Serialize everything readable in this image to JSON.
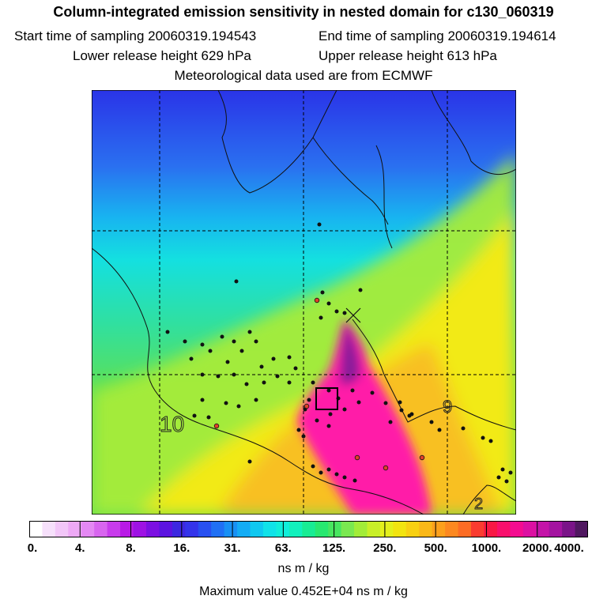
{
  "header": {
    "title": "Column-integrated emission sensitivity in nested domain for c130_060319",
    "start_time": "Start time of sampling 20060319.194543",
    "end_time": "End time of sampling 20060319.194614",
    "lower_release": "Lower release height  629 hPa",
    "upper_release": "Upper release height  613 hPa",
    "met_data": "Meteorological data used are from ECMWF"
  },
  "map": {
    "labels": {
      "left_number": "10",
      "right_number": "9",
      "bottom_number": "2"
    },
    "colors": {
      "north": "#3a3af0",
      "cyan": "#18d8e8",
      "green": "#55e05a",
      "yellow": "#f4ea10",
      "orange": "#f8b428",
      "magenta": "#ff1aa8",
      "purple": "#8a1a9a",
      "grid": "#000000",
      "dots": "#111111",
      "red_dots": "#e0402a"
    }
  },
  "colorbar": {
    "ticks": [
      "0.",
      "4.",
      "8.",
      "16.",
      "31.",
      "63.",
      "125.",
      "250.",
      "500.",
      "1000.",
      "2000.",
      "4000."
    ],
    "colors": [
      "#ffffff",
      "#f6e0fb",
      "#f2c6f8",
      "#eea9f6",
      "#e488f3",
      "#d865ef",
      "#c83cec",
      "#b81ae6",
      "#9e12e4",
      "#7c10e2",
      "#5c14e0",
      "#3c28e0",
      "#3434ea",
      "#2850f0",
      "#2070f4",
      "#1890f4",
      "#14acf4",
      "#10c8f0",
      "#10e2e8",
      "#10eeda",
      "#12f0bc",
      "#18ec94",
      "#28e870",
      "#48e660",
      "#7ae850",
      "#a2ec38",
      "#c8ef28",
      "#e4f01c",
      "#f2e410",
      "#f8d012",
      "#fab818",
      "#fca01c",
      "#fc8820",
      "#fc6c24",
      "#fa3c30",
      "#f81844",
      "#f8106c",
      "#f40c90",
      "#dc10a2",
      "#c414a8",
      "#a414a0",
      "#7a1488",
      "#501860"
    ],
    "unit": "ns m / kg",
    "max_value": "Maximum value  0.452E+04 ns m / kg"
  }
}
